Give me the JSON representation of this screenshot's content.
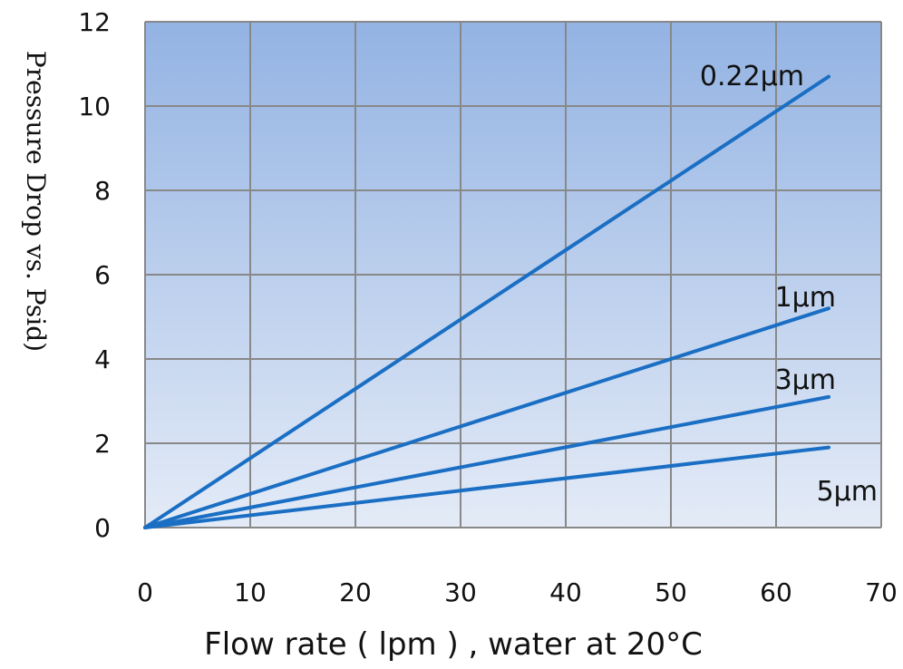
{
  "chart_data": {
    "type": "line",
    "title": "",
    "xlabel": "Flow rate ( lpm ) , water at 20°C",
    "ylabel": "Pressure Drop vs. Psid)",
    "xlim": [
      0,
      70
    ],
    "ylim": [
      0,
      12
    ],
    "x_ticks": [
      "0",
      "10",
      "20",
      "30",
      "40",
      "50",
      "60",
      "70"
    ],
    "y_ticks": [
      "0",
      "2",
      "4",
      "6",
      "8",
      "10",
      "12"
    ],
    "grid": true,
    "line_color": "#1a6fc4",
    "plot_bg_top": "#93b3e3",
    "plot_bg_bottom": "#e4ebf7",
    "grid_color": "#888888",
    "series": [
      {
        "name": "0.22µm",
        "x": [
          0,
          65
        ],
        "y": [
          0,
          10.7
        ]
      },
      {
        "name": "1µm",
        "x": [
          0,
          65
        ],
        "y": [
          0,
          5.2
        ]
      },
      {
        "name": "3µm",
        "x": [
          0,
          65
        ],
        "y": [
          0,
          3.1
        ]
      },
      {
        "name": "5µm",
        "x": [
          0,
          65
        ],
        "y": [
          0,
          1.9
        ]
      }
    ]
  }
}
